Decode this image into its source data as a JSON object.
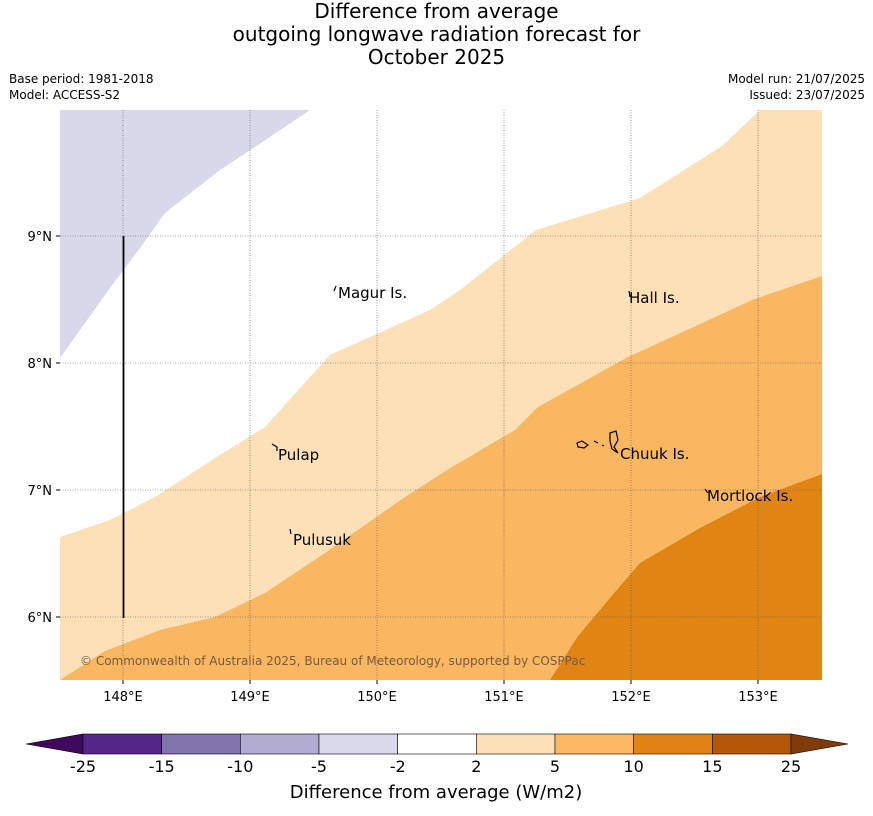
{
  "title": {
    "line1": "Difference from average",
    "line2": "outgoing longwave radiation forecast for",
    "line3": "October 2025"
  },
  "meta_left": {
    "base_period": "Base period: 1981-2018",
    "model": "Model: ACCESS-S2"
  },
  "meta_right": {
    "model_run": "Model run: 21/07/2025",
    "issued": "Issued: 23/07/2025"
  },
  "map": {
    "lon_labels": [
      "148°E",
      "149°E",
      "150°E",
      "151°E",
      "152°E",
      "153°E"
    ],
    "lat_labels": [
      "9°N",
      "8°N",
      "7°N",
      "6°N"
    ],
    "places": [
      "Magur Is.",
      "Hall Is.",
      "Pulap",
      "Chuuk Is.",
      "Mortlock Is.",
      "Pulusuk"
    ],
    "copyright": "© Commonwealth of Australia 2025, Bureau of Meteorology, supported by COSPPac",
    "region_colors": {
      "minus5_to_minus2": "#d8d8ea",
      "plus2_to_plus5": "#fde0b6",
      "plus5_to_plus10": "#fab762",
      "plus10_to_plus15": "#e08514"
    }
  },
  "colorbar": {
    "title": "Difference from average (W/m2)",
    "tick_labels": [
      "-25",
      "-15",
      "-10",
      "-5",
      "-2",
      "2",
      "5",
      "10",
      "15",
      "25"
    ],
    "colors": [
      "#3f0a5e",
      "#542688",
      "#8073ac",
      "#b2abd2",
      "#d8daeb",
      "#ffffff",
      "#fee0b6",
      "#fdb863",
      "#e08214",
      "#b35806",
      "#7f3b08"
    ]
  }
}
